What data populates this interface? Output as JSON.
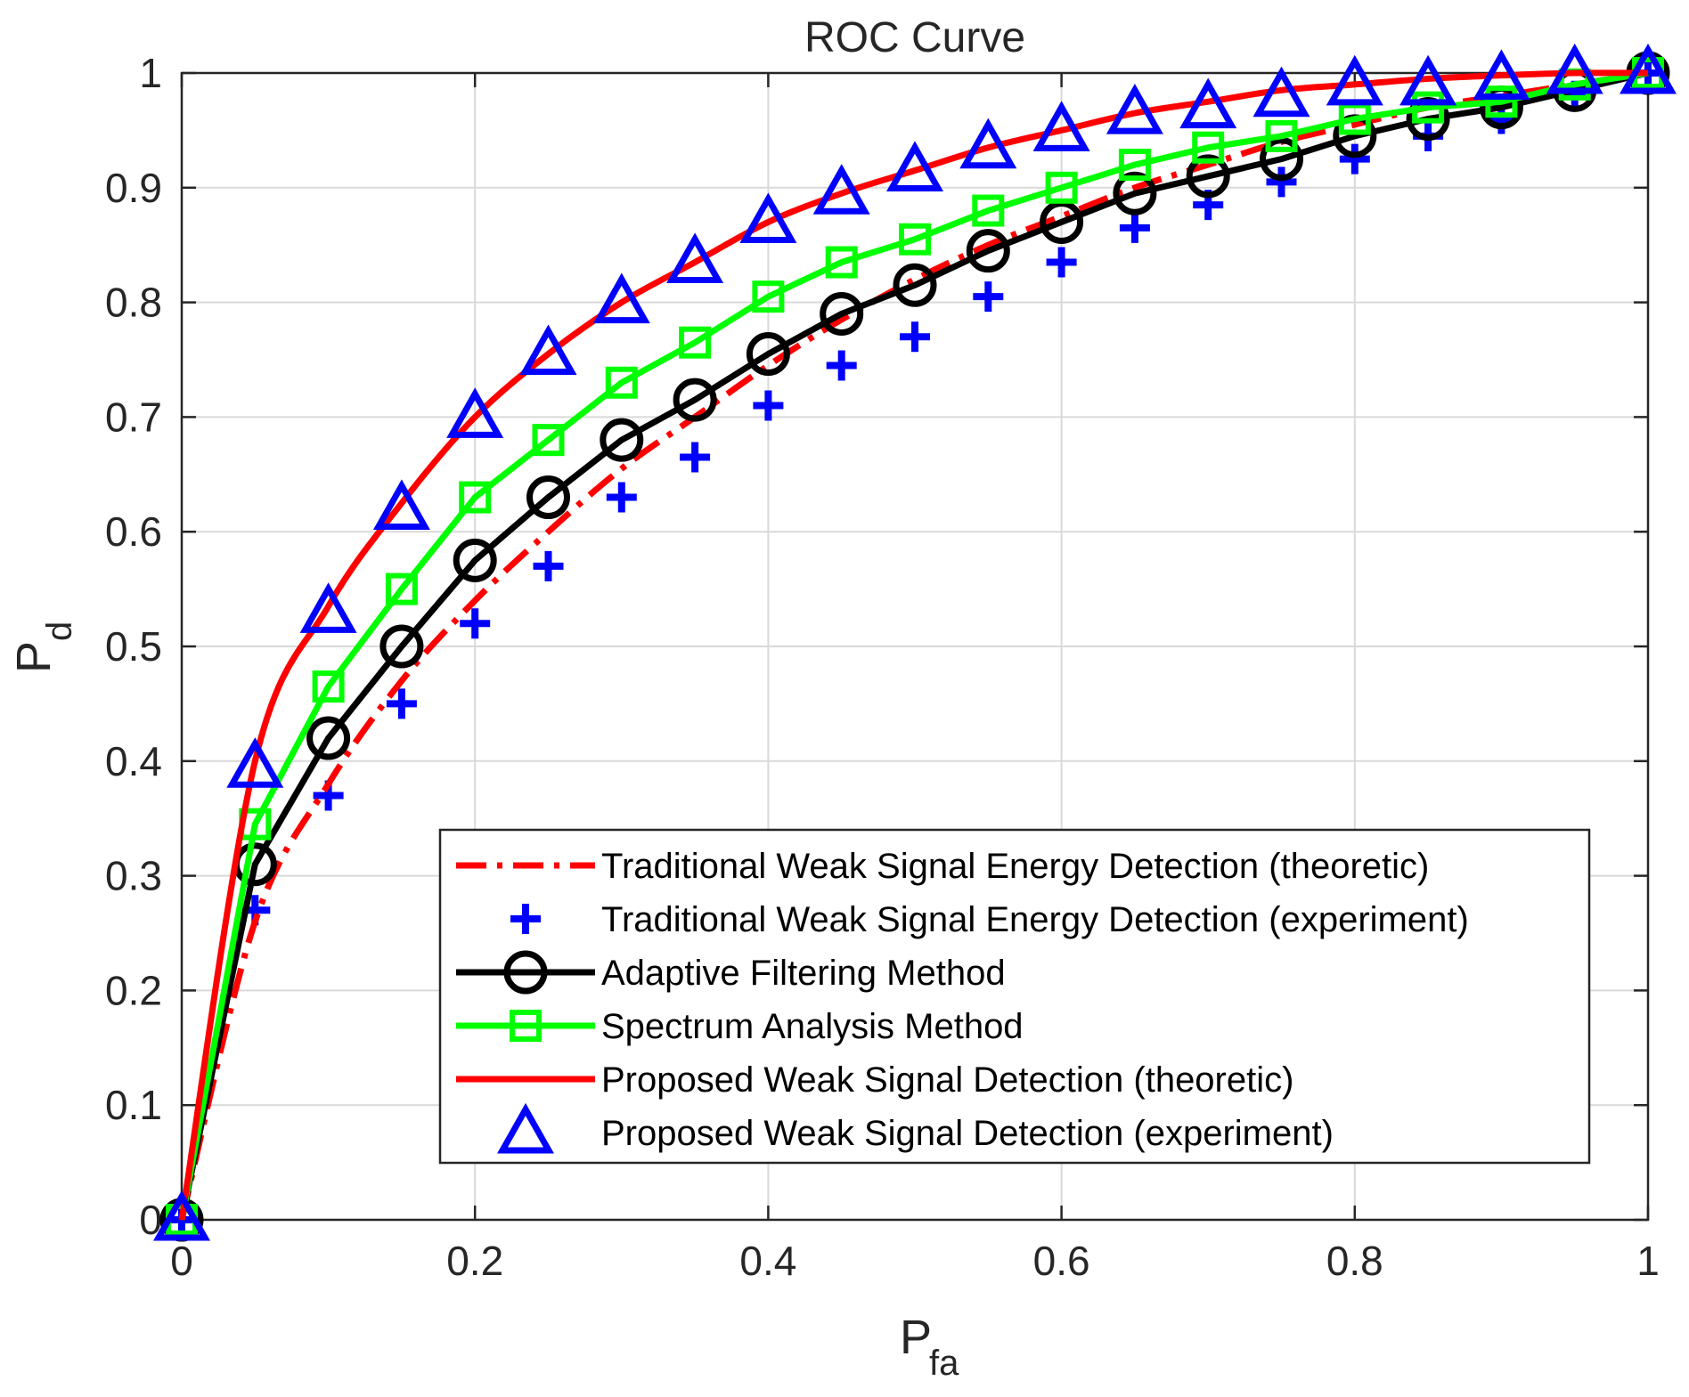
{
  "chart_data": {
    "type": "line",
    "title": "ROC Curve",
    "xlabel": {
      "main": "P",
      "sub": "fa"
    },
    "ylabel": {
      "main": "P",
      "sub": "d"
    },
    "xlim": [
      0,
      1
    ],
    "ylim": [
      0,
      1
    ],
    "grid": true,
    "legend_position": "bottom-right",
    "xticks": [
      0,
      0.2,
      0.4,
      0.6,
      0.8,
      1
    ],
    "xtick_labels": [
      "0",
      "0.2",
      "0.4",
      "0.6",
      "0.8",
      "1"
    ],
    "yticks": [
      0,
      0.1,
      0.2,
      0.3,
      0.4,
      0.5,
      0.6,
      0.7,
      0.8,
      0.9,
      1
    ],
    "ytick_labels": [
      "0",
      "0.1",
      "0.2",
      "0.3",
      "0.4",
      "0.5",
      "0.6",
      "0.7",
      "0.8",
      "0.9",
      "1"
    ],
    "x": [
      0,
      0.05,
      0.1,
      0.15,
      0.2,
      0.25,
      0.3,
      0.35,
      0.4,
      0.45,
      0.5,
      0.55,
      0.6,
      0.65,
      0.7,
      0.75,
      0.8,
      0.85,
      0.9,
      0.95,
      1
    ],
    "series": [
      {
        "name": "Traditional Weak Signal Energy Detection (theoretic)",
        "style": "dashdot",
        "marker": "none",
        "color": "#ff0000",
        "values": [
          0,
          0.26,
          0.38,
          0.47,
          0.54,
          0.6,
          0.655,
          0.7,
          0.745,
          0.785,
          0.82,
          0.85,
          0.875,
          0.9,
          0.92,
          0.94,
          0.955,
          0.97,
          0.98,
          0.99,
          1.0
        ]
      },
      {
        "name": "Traditional Weak Signal Energy Detection (experiment)",
        "style": "none",
        "marker": "plus",
        "color": "#0000ff",
        "values": [
          0,
          0.27,
          0.37,
          0.45,
          0.52,
          0.57,
          0.63,
          0.665,
          0.71,
          0.745,
          0.77,
          0.805,
          0.835,
          0.865,
          0.885,
          0.905,
          0.925,
          0.945,
          0.96,
          0.98,
          1.0
        ]
      },
      {
        "name": "Adaptive Filtering Method",
        "style": "solid",
        "marker": "circle",
        "color": "#000000",
        "values": [
          0,
          0.31,
          0.42,
          0.5,
          0.575,
          0.63,
          0.68,
          0.715,
          0.755,
          0.79,
          0.815,
          0.845,
          0.87,
          0.895,
          0.91,
          0.925,
          0.945,
          0.96,
          0.97,
          0.985,
          1.0
        ]
      },
      {
        "name": "Spectrum Analysis Method",
        "style": "solid",
        "marker": "square",
        "color": "#00ff00",
        "values": [
          0,
          0.345,
          0.465,
          0.55,
          0.63,
          0.68,
          0.73,
          0.765,
          0.805,
          0.835,
          0.855,
          0.88,
          0.9,
          0.92,
          0.935,
          0.945,
          0.96,
          0.97,
          0.975,
          0.99,
          1.0
        ]
      },
      {
        "name": "Proposed Weak Signal Detection (theoretic)",
        "style": "solid",
        "marker": "none",
        "color": "#ff0000",
        "values": [
          0,
          0.4,
          0.535,
          0.625,
          0.7,
          0.755,
          0.8,
          0.835,
          0.87,
          0.895,
          0.915,
          0.935,
          0.95,
          0.965,
          0.975,
          0.985,
          0.99,
          0.995,
          0.998,
          1.0,
          1.0
        ]
      },
      {
        "name": "Proposed Weak Signal Detection (experiment)",
        "style": "none",
        "marker": "triangle",
        "color": "#0000ff",
        "values": [
          0,
          0.395,
          0.53,
          0.62,
          0.7,
          0.755,
          0.8,
          0.835,
          0.87,
          0.895,
          0.915,
          0.935,
          0.95,
          0.965,
          0.97,
          0.98,
          0.99,
          0.99,
          0.995,
          1.0,
          1.0
        ]
      }
    ]
  }
}
